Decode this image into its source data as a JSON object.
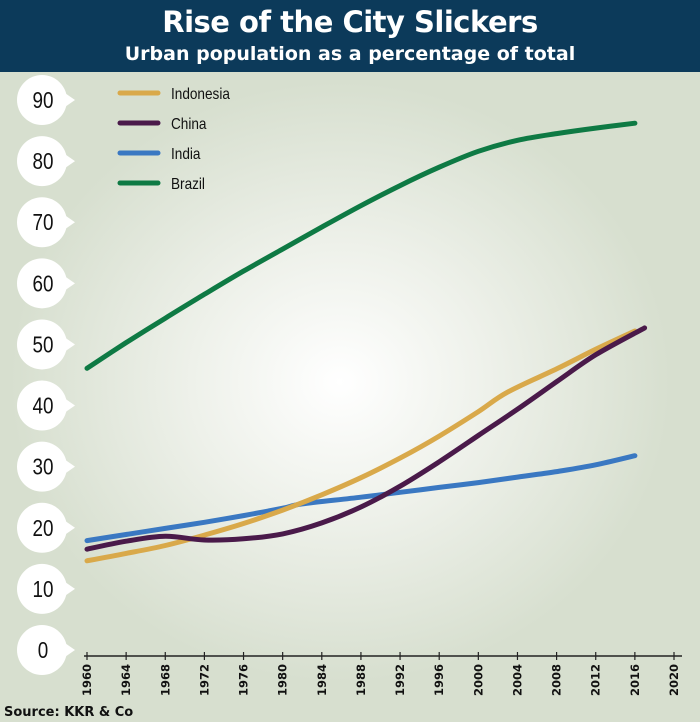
{
  "header": {
    "title": "Rise of the City Slickers",
    "subtitle": "Urban population as a percentage of total"
  },
  "source": "Source: KKR & Co",
  "chart_data": {
    "type": "line",
    "title": "Rise of the City Slickers",
    "subtitle": "Urban population as a percentage of total",
    "xlabel": "",
    "ylabel": "",
    "xlim": [
      1960,
      2020
    ],
    "ylim": [
      0,
      90
    ],
    "x_ticks": [
      1960,
      1964,
      1968,
      1972,
      1976,
      1980,
      1984,
      1988,
      1992,
      1996,
      2000,
      2004,
      2008,
      2012,
      2016,
      2020
    ],
    "y_ticks": [
      0,
      10,
      20,
      30,
      40,
      50,
      60,
      70,
      80,
      90
    ],
    "grid": false,
    "legend_position": "top-left",
    "series": [
      {
        "name": "Indonesia",
        "color": "#d9a94a",
        "x": [
          1960,
          1964,
          1968,
          1972,
          1976,
          1980,
          1984,
          1988,
          1992,
          1996,
          2000,
          2003,
          2008,
          2012,
          2016
        ],
        "values": [
          14.6,
          15.8,
          17.1,
          18.8,
          20.7,
          22.9,
          25.4,
          28.2,
          31.4,
          35.0,
          39.0,
          42.2,
          46.0,
          49.2,
          52.2
        ]
      },
      {
        "name": "China",
        "color": "#4a1a4a",
        "x": [
          1960,
          1964,
          1968,
          1972,
          1976,
          1980,
          1984,
          1988,
          1992,
          1996,
          2000,
          2004,
          2008,
          2012,
          2017
        ],
        "values": [
          16.5,
          17.8,
          18.6,
          18.0,
          18.2,
          19.0,
          20.8,
          23.4,
          26.8,
          30.8,
          35.1,
          39.4,
          43.9,
          48.3,
          52.7
        ]
      },
      {
        "name": "India",
        "color": "#3a78c2",
        "x": [
          1960,
          1964,
          1968,
          1972,
          1976,
          1980,
          1982,
          1988,
          1992,
          1996,
          2000,
          2004,
          2008,
          2012,
          2016
        ],
        "values": [
          17.9,
          18.9,
          19.9,
          20.9,
          22.0,
          23.2,
          23.9,
          25.0,
          25.8,
          26.6,
          27.4,
          28.3,
          29.2,
          30.3,
          31.8
        ]
      },
      {
        "name": "Brazil",
        "color": "#0e7a44",
        "x": [
          1960,
          1964,
          1968,
          1972,
          1976,
          1980,
          1984,
          1988,
          1992,
          1996,
          2000,
          2004,
          2008,
          2012,
          2016
        ],
        "values": [
          46.1,
          50.3,
          54.3,
          58.2,
          62.0,
          65.6,
          69.2,
          72.7,
          76.0,
          79.0,
          81.6,
          83.4,
          84.5,
          85.4,
          86.2
        ]
      }
    ]
  }
}
